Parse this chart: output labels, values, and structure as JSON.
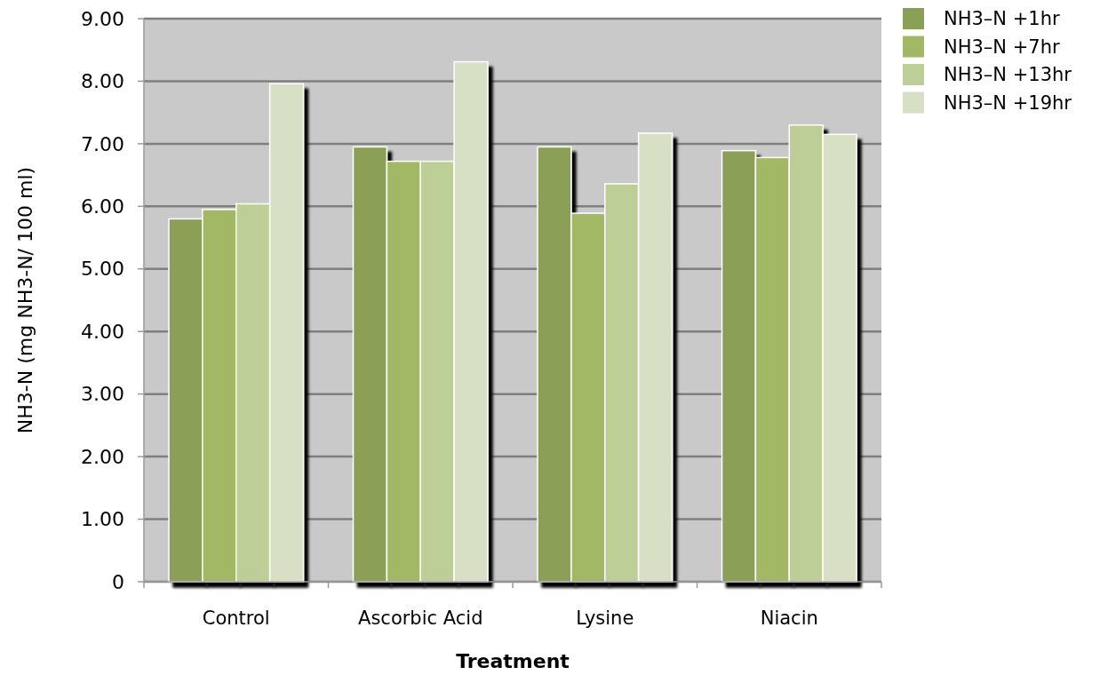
{
  "chart_data": {
    "type": "bar",
    "categories": [
      "Control",
      "Ascorbic Acid",
      "Lysine",
      "Niacin"
    ],
    "series": [
      {
        "name": "NH3–N +1hr",
        "color": "#8ba057",
        "values": [
          5.8,
          6.95,
          6.95,
          6.89
        ]
      },
      {
        "name": "NH3–N +7hr",
        "color": "#a3b865",
        "values": [
          5.95,
          6.72,
          5.89,
          6.78
        ]
      },
      {
        "name": "NH3–N +13hr",
        "color": "#bdcf97",
        "values": [
          6.04,
          6.72,
          6.36,
          7.3
        ]
      },
      {
        "name": "NH3–N +19hr",
        "color": "#d7e0c4",
        "values": [
          7.96,
          8.31,
          7.17,
          7.15
        ]
      }
    ],
    "xlabel": "Treatment",
    "ylabel": "NH3-N (mg NH3-N/ 100 ml)",
    "ylim": [
      0,
      9
    ],
    "yticks": [
      0,
      {
        "value": 1,
        "label": "1.00"
      },
      {
        "value": 2,
        "label": "2.00"
      },
      {
        "value": 3,
        "label": "3.00"
      },
      {
        "value": 4,
        "label": "4.00"
      },
      {
        "value": 5,
        "label": "5.00"
      },
      {
        "value": 6,
        "label": "6.00"
      },
      {
        "value": 7,
        "label": "7.00"
      },
      {
        "value": 8,
        "label": "8.00"
      },
      {
        "value": 9,
        "label": "9.00"
      }
    ],
    "grid": "y",
    "legend": "top right"
  }
}
